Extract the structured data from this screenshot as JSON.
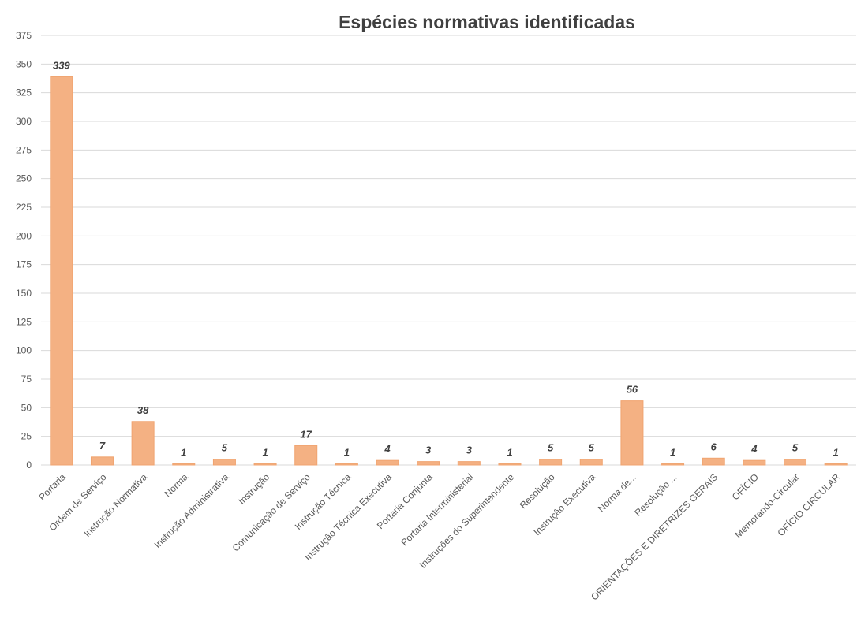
{
  "chart_data": {
    "type": "bar",
    "title": "Espécies normativas identificadas",
    "categories": [
      "Portaria",
      "Ordem de Serviço",
      "Instrução Normativa",
      "Norma",
      "Instrução Administrativa",
      "Instrução",
      "Comunicação de Serviço",
      "Instrução Técnica",
      "Instrução Técnica Executiva",
      "Portaria Conjunta",
      "Portaria Interministerial",
      "Instruções do Superintendente",
      "Resolução",
      "Instrução Executiva",
      "Norma de...",
      "Resolução ...",
      "ORIENTAÇÕES E DIRETRIZES GERAIS",
      "OFÍCIO",
      "Memorando-Circular",
      "OFÍCIO CIRCULAR"
    ],
    "values": [
      339,
      7,
      38,
      1,
      5,
      1,
      17,
      1,
      4,
      3,
      3,
      1,
      5,
      5,
      56,
      1,
      6,
      4,
      5,
      1
    ],
    "color": "#f4b183",
    "ylim": [
      0,
      375
    ],
    "yticks": [
      0,
      25,
      50,
      75,
      100,
      125,
      150,
      175,
      200,
      225,
      250,
      275,
      300,
      325,
      350,
      375
    ],
    "grid": true
  }
}
